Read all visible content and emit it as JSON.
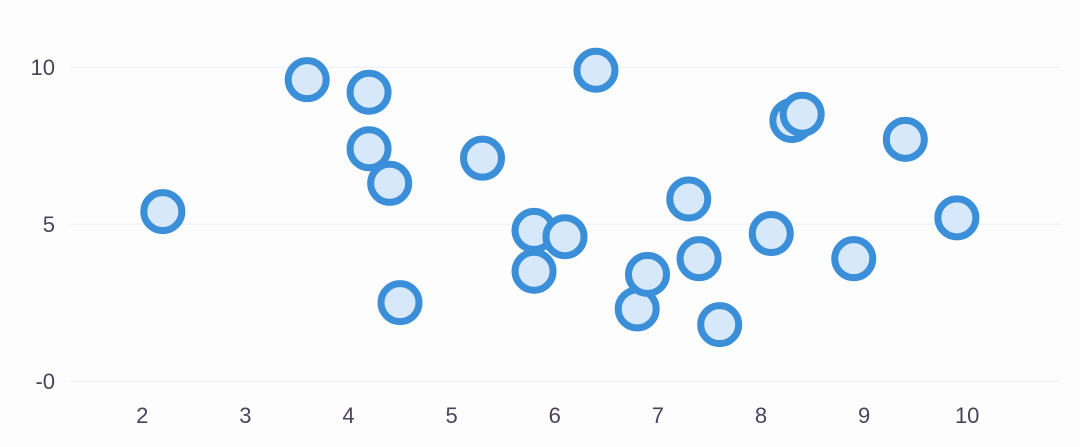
{
  "chart_data": {
    "type": "scatter",
    "title": "",
    "xlabel": "",
    "ylabel": "",
    "xlim": [
      1.3,
      10.9
    ],
    "ylim": [
      -0.6,
      11.5
    ],
    "x_ticks": [
      {
        "value": 2,
        "label": "2"
      },
      {
        "value": 3,
        "label": "3"
      },
      {
        "value": 4,
        "label": "4"
      },
      {
        "value": 5,
        "label": "5"
      },
      {
        "value": 6,
        "label": "6"
      },
      {
        "value": 7,
        "label": "7"
      },
      {
        "value": 8,
        "label": "8"
      },
      {
        "value": 9,
        "label": "9"
      },
      {
        "value": 10,
        "label": "10"
      }
    ],
    "y_ticks": [
      {
        "value": 0,
        "label": "-0"
      },
      {
        "value": 5,
        "label": "5"
      },
      {
        "value": 10,
        "label": "10"
      }
    ],
    "grid": {
      "horizontal": true,
      "vertical": false
    },
    "legend": "none",
    "colors": {
      "point_fill": "#d6e8fa",
      "point_stroke": "#3b8fd9",
      "gridline": "#e8f0f8",
      "tick_text": "#4a4458"
    },
    "series": [
      {
        "points": [
          {
            "x": 2.2,
            "y": 5.4
          },
          {
            "x": 3.6,
            "y": 9.6
          },
          {
            "x": 4.2,
            "y": 9.2
          },
          {
            "x": 4.2,
            "y": 7.4
          },
          {
            "x": 4.4,
            "y": 6.3
          },
          {
            "x": 4.5,
            "y": 2.5
          },
          {
            "x": 5.3,
            "y": 7.1
          },
          {
            "x": 5.8,
            "y": 4.8
          },
          {
            "x": 5.8,
            "y": 3.5
          },
          {
            "x": 6.1,
            "y": 4.6
          },
          {
            "x": 6.4,
            "y": 9.9
          },
          {
            "x": 6.8,
            "y": 2.3
          },
          {
            "x": 6.9,
            "y": 3.4
          },
          {
            "x": 7.3,
            "y": 5.8
          },
          {
            "x": 7.4,
            "y": 3.9
          },
          {
            "x": 7.6,
            "y": 1.8
          },
          {
            "x": 8.1,
            "y": 4.7
          },
          {
            "x": 8.3,
            "y": 8.3
          },
          {
            "x": 8.4,
            "y": 8.5
          },
          {
            "x": 8.9,
            "y": 3.9
          },
          {
            "x": 9.4,
            "y": 7.7
          },
          {
            "x": 9.9,
            "y": 5.2
          }
        ]
      }
    ]
  }
}
